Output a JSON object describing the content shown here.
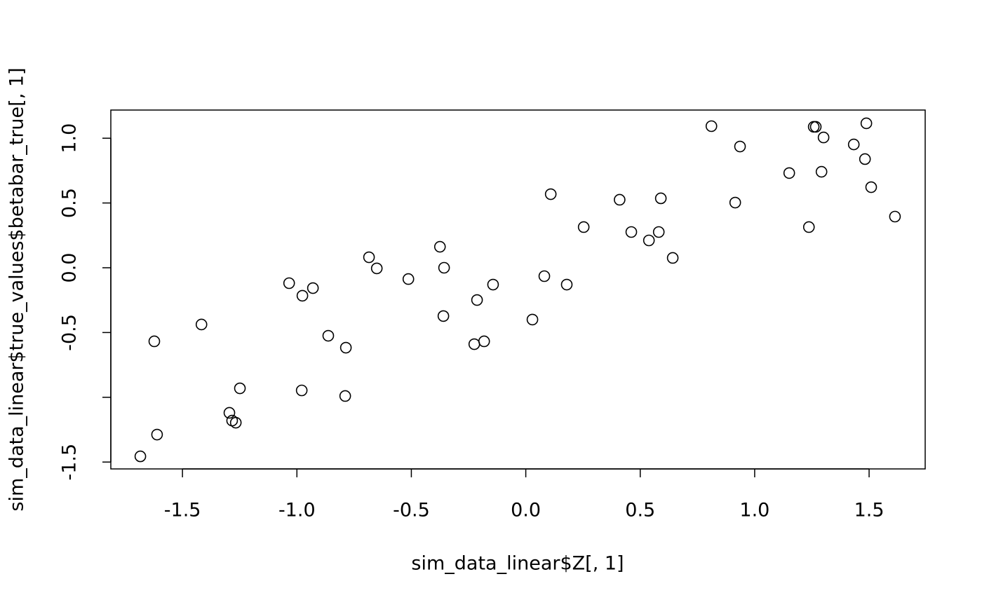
{
  "chart_data": {
    "type": "scatter",
    "x_label": "sim_data_linear$Z[, 1]",
    "y_label": "sim_data_linear$true_values$betabar_true[, 1]",
    "color": "#000000",
    "xlim": [
      -1.813,
      1.745
    ],
    "ylim": [
      -1.553,
      1.2175
    ],
    "xticks": [
      -1.5,
      {
        "value": -1,
        "label": "-1.0"
      },
      -0.5,
      {
        "value": 0,
        "label": "0.0"
      },
      0.5,
      {
        "value": 1,
        "label": "1.0"
      },
      1.5
    ],
    "yticks": [
      -1.5,
      {
        "value": -1,
        "label": null
      },
      -0.5,
      {
        "value": 0,
        "label": "0.0"
      },
      0.5,
      {
        "value": 1,
        "label": "1.0"
      }
    ],
    "x": [
      0.811,
      0.936,
      1.258,
      1.267,
      1.301,
      1.488,
      1.433,
      1.482,
      1.151,
      1.292,
      1.509,
      1.613,
      1.237,
      0.915,
      0.109,
      0.41,
      0.59,
      0.253,
      0.461,
      0.581,
      0.538,
      0.642,
      0.081,
      0.179,
      0.029,
      -0.143,
      -0.213,
      -0.182,
      -0.225,
      -0.375,
      -0.357,
      -0.36,
      -0.513,
      -0.685,
      -0.651,
      -1.034,
      -0.976,
      -0.93,
      -0.863,
      -0.786,
      -0.789,
      -0.979,
      -1.417,
      -1.623,
      -1.249,
      -1.295,
      -1.283,
      -1.267,
      -1.611,
      -1.684
    ],
    "values": [
      1.093,
      0.936,
      1.088,
      1.088,
      1.006,
      1.115,
      0.952,
      0.839,
      0.731,
      0.741,
      0.622,
      0.395,
      0.314,
      0.503,
      0.568,
      0.525,
      0.536,
      0.314,
      0.276,
      0.276,
      0.211,
      0.076,
      -0.065,
      -0.13,
      -0.4,
      -0.13,
      -0.249,
      -0.568,
      -0.59,
      0.162,
      0.0,
      -0.373,
      -0.087,
      0.081,
      -0.005,
      -0.119,
      -0.216,
      -0.157,
      -0.525,
      -0.617,
      -0.99,
      -0.947,
      -0.438,
      -0.568,
      -0.931,
      -1.12,
      -1.18,
      -1.196,
      -1.288,
      -1.456
    ]
  }
}
